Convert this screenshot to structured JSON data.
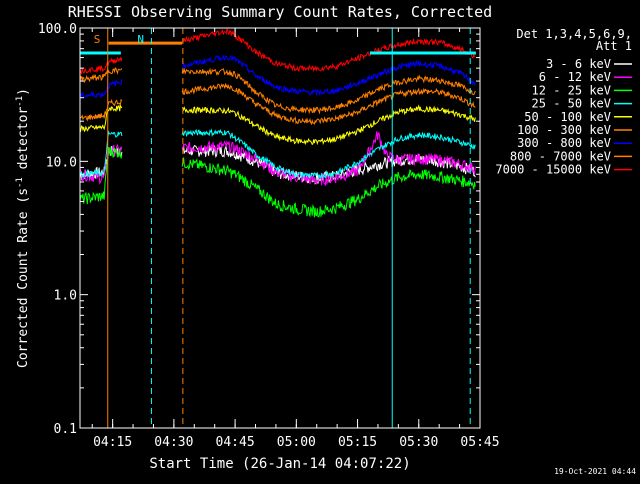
{
  "chart_data": {
    "type": "line",
    "title": "RHESSI Observing Summary Count Rates, Corrected",
    "xlabel": "Start Time (26-Jan-14 04:07:22)",
    "ylabel": "Corrected Count Rate (s",
    "ylabel_sup": "-1",
    "ylabel_mid": " detector",
    "ylabel_end": ")",
    "yscale": "log",
    "ylim": [
      0.1,
      100
    ],
    "xlim_minutes": [
      247,
      345
    ],
    "x_ticks": [
      {
        "m": 255,
        "label": "04:15"
      },
      {
        "m": 270,
        "label": "04:30"
      },
      {
        "m": 285,
        "label": "04:45"
      },
      {
        "m": 300,
        "label": "05:00"
      },
      {
        "m": 315,
        "label": "05:15"
      },
      {
        "m": 330,
        "label": "05:30"
      },
      {
        "m": 345,
        "label": "05:45"
      }
    ],
    "y_ticks": [
      {
        "v": 0.1,
        "label": "0.1"
      },
      {
        "v": 1.0,
        "label": "1.0"
      },
      {
        "v": 10.0,
        "label": "10.0"
      },
      {
        "v": 100.0,
        "label": "100.0"
      }
    ],
    "legend_header": [
      "Det 1,3,4,5,6,9,",
      "Att 1"
    ],
    "legend_placement": "right",
    "series": [
      {
        "name": "3 - 6 keV",
        "color": "#ffffff",
        "points": [
          [
            247,
            8
          ],
          [
            253,
            8.3
          ],
          [
            254,
            12
          ],
          [
            283,
            12
          ],
          [
            285,
            11.5
          ],
          [
            290,
            10
          ],
          [
            295,
            8.2
          ],
          [
            300,
            7.8
          ],
          [
            305,
            7.5
          ],
          [
            310,
            7.8
          ],
          [
            315,
            8.6
          ],
          [
            320,
            9.5
          ],
          [
            325,
            10.2
          ],
          [
            330,
            10.5
          ],
          [
            335,
            10
          ],
          [
            340,
            9.2
          ],
          [
            344,
            8.4
          ]
        ]
      },
      {
        "name": "6 - 12 keV",
        "color": "#ff00ff",
        "points": [
          [
            247,
            8
          ],
          [
            253,
            7.5
          ],
          [
            254,
            12
          ],
          [
            283,
            13
          ],
          [
            285,
            12.5
          ],
          [
            290,
            10.5
          ],
          [
            295,
            8.3
          ],
          [
            300,
            7.6
          ],
          [
            305,
            7.2
          ],
          [
            310,
            7.6
          ],
          [
            315,
            8.5
          ],
          [
            318,
            12
          ],
          [
            320,
            16
          ],
          [
            322,
            11
          ],
          [
            325,
            10.3
          ],
          [
            330,
            10.5
          ],
          [
            335,
            10.3
          ],
          [
            340,
            9.6
          ],
          [
            344,
            8.8
          ]
        ]
      },
      {
        "name": "12 - 25 keV",
        "color": "#00ff00",
        "points": [
          [
            247,
            5.2
          ],
          [
            253,
            5.5
          ],
          [
            254,
            12
          ],
          [
            283,
            8.5
          ],
          [
            285,
            8
          ],
          [
            290,
            6.3
          ],
          [
            295,
            4.8
          ],
          [
            300,
            4.4
          ],
          [
            305,
            4.2
          ],
          [
            310,
            4.5
          ],
          [
            315,
            5.2
          ],
          [
            320,
            6.5
          ],
          [
            325,
            7.6
          ],
          [
            330,
            8
          ],
          [
            335,
            7.7
          ],
          [
            340,
            7.2
          ],
          [
            344,
            6.8
          ]
        ]
      },
      {
        "name": "25 - 50 keV",
        "color": "#00ffff",
        "points": [
          [
            247,
            8
          ],
          [
            253,
            8.2
          ],
          [
            254,
            16
          ],
          [
            283,
            16.5
          ],
          [
            285,
            15
          ],
          [
            290,
            11.3
          ],
          [
            295,
            9
          ],
          [
            300,
            8
          ],
          [
            305,
            7.8
          ],
          [
            310,
            8.2
          ],
          [
            315,
            9.8
          ],
          [
            320,
            12.3
          ],
          [
            325,
            14.8
          ],
          [
            330,
            15.8
          ],
          [
            335,
            15.3
          ],
          [
            340,
            14
          ],
          [
            344,
            12.8
          ]
        ]
      },
      {
        "name": "50 - 100 keV",
        "color": "#ffff00",
        "points": [
          [
            247,
            17.5
          ],
          [
            253,
            18
          ],
          [
            254,
            25
          ],
          [
            283,
            24
          ],
          [
            285,
            23
          ],
          [
            290,
            18.5
          ],
          [
            295,
            15.2
          ],
          [
            300,
            14.2
          ],
          [
            305,
            14
          ],
          [
            310,
            14.8
          ],
          [
            315,
            16.8
          ],
          [
            320,
            20
          ],
          [
            325,
            23.4
          ],
          [
            330,
            24.8
          ],
          [
            335,
            24.2
          ],
          [
            340,
            22.5
          ],
          [
            344,
            20.5
          ]
        ]
      },
      {
        "name": "100 - 300 keV",
        "color": "#ff8000",
        "points": [
          [
            247,
            21
          ],
          [
            253,
            22
          ],
          [
            254,
            27
          ],
          [
            283,
            37
          ],
          [
            285,
            35
          ],
          [
            290,
            27
          ],
          [
            295,
            22
          ],
          [
            300,
            20.2
          ],
          [
            305,
            20
          ],
          [
            310,
            21
          ],
          [
            315,
            23.3
          ],
          [
            320,
            27.8
          ],
          [
            325,
            32
          ],
          [
            330,
            33.8
          ],
          [
            335,
            33
          ],
          [
            340,
            30
          ],
          [
            344,
            25.5
          ]
        ]
      },
      {
        "name": "300 - 800 keV",
        "color": "#0000ff",
        "points": [
          [
            247,
            31
          ],
          [
            253,
            32
          ],
          [
            254,
            37
          ],
          [
            283,
            61
          ],
          [
            285,
            58
          ],
          [
            290,
            44
          ],
          [
            295,
            36
          ],
          [
            300,
            33.5
          ],
          [
            305,
            32.8
          ],
          [
            310,
            34
          ],
          [
            315,
            38.5
          ],
          [
            320,
            44.5
          ],
          [
            325,
            51
          ],
          [
            330,
            54
          ],
          [
            335,
            52
          ],
          [
            340,
            46
          ],
          [
            344,
            38
          ]
        ]
      },
      {
        "name": "800 - 7000 keV",
        "color": "#ff8000",
        "points": [
          [
            247,
            41
          ],
          [
            253,
            43
          ],
          [
            254,
            48
          ],
          [
            283,
            47
          ],
          [
            285,
            45
          ],
          [
            290,
            33
          ],
          [
            295,
            26
          ],
          [
            300,
            24.5
          ],
          [
            305,
            24.2
          ],
          [
            310,
            25.3
          ],
          [
            315,
            28.7
          ],
          [
            320,
            34.5
          ],
          [
            325,
            39.5
          ],
          [
            330,
            41.5
          ],
          [
            335,
            40.5
          ],
          [
            340,
            37
          ],
          [
            344,
            32.5
          ]
        ]
      },
      {
        "name": "7000 - 15000 keV",
        "color": "#ff0000",
        "points": [
          [
            247,
            48
          ],
          [
            253,
            50
          ],
          [
            254,
            55
          ],
          [
            283,
            95
          ],
          [
            285,
            88
          ],
          [
            290,
            66
          ],
          [
            295,
            54
          ],
          [
            300,
            50
          ],
          [
            305,
            49.5
          ],
          [
            310,
            52
          ],
          [
            315,
            59
          ],
          [
            320,
            68
          ],
          [
            325,
            75
          ],
          [
            330,
            80
          ],
          [
            335,
            78
          ],
          [
            340,
            70
          ],
          [
            344,
            60
          ]
        ]
      }
    ],
    "flat_segments": [
      {
        "color": "#00ffff",
        "x": [
          247,
          257
        ],
        "y": 65
      },
      {
        "color": "#00ffff",
        "x": [
          318,
          344
        ],
        "y": 65
      },
      {
        "color": "#ff8000",
        "x": [
          254,
          272
        ],
        "y": 77
      }
    ],
    "markers": [
      {
        "label": "S",
        "color": "#ff8000",
        "x": 253.8
      },
      {
        "label": "N",
        "color": "#00ffff",
        "x": 264.5
      }
    ],
    "vlines": [
      {
        "x": 247.0,
        "color": "#00ffff",
        "style": "solid"
      },
      {
        "x": 253.8,
        "color": "#ff8000",
        "style": "solid"
      },
      {
        "x": 264.5,
        "color": "#00ffff",
        "style": "dashed"
      },
      {
        "x": 272.2,
        "color": "#ff8000",
        "style": "dashed"
      },
      {
        "x": 323.5,
        "color": "#00ffff",
        "style": "solid"
      },
      {
        "x": 342.6,
        "color": "#00ffff",
        "style": "dashed"
      }
    ],
    "footer_date": "19-Oct-2021 04:44"
  }
}
